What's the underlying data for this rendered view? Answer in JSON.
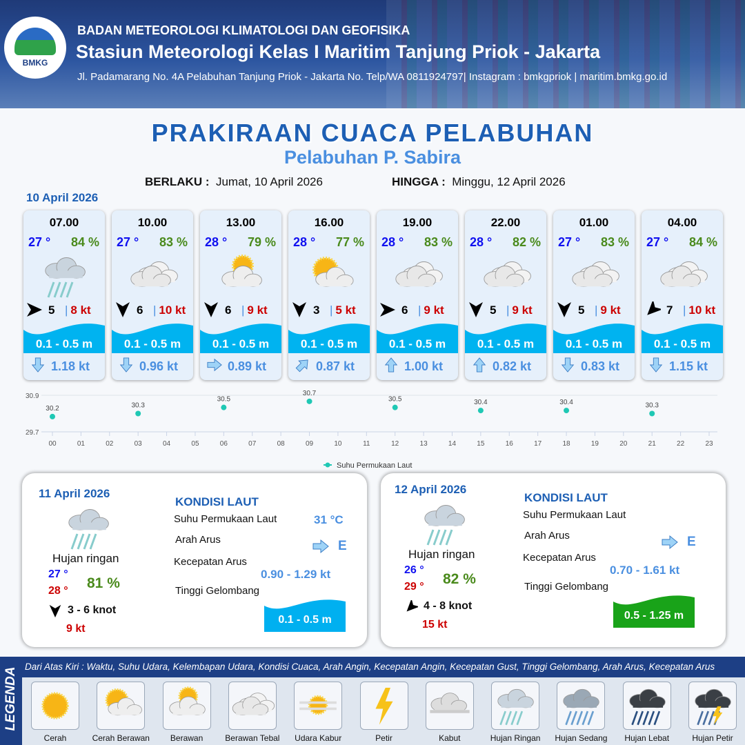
{
  "header": {
    "org": "BADAN METEOROLOGI KLIMATOLOGI DAN GEOFISIKA",
    "station": "Stasiun Meteorologi Kelas I Maritim Tanjung Priok - Jakarta",
    "address": "Jl. Padamarang No. 4A Pelabuhan Tanjung Priok - Jakarta No. Telp/WA 0811924797| Instagram : bmkgpriok | maritim.bmkg.go.id",
    "logo_text": "BMKG"
  },
  "title": "PRAKIRAAN CUACA PELABUHAN",
  "subtitle": "Pelabuhan P. Sabira",
  "validity": {
    "from_label": "BERLAKU :",
    "from": "Jumat, 10 April 2026",
    "to_label": "HINGGA :",
    "to": "Minggu, 12 April 2026"
  },
  "day1_date": "10 April 2026",
  "forecasts": [
    {
      "time": "07.00",
      "temp": "27 °",
      "hum": "84 %",
      "icon": "hujan-ringan",
      "wind_dir": 90,
      "wind": "5",
      "gust": "8 kt",
      "wave": "0.1 - 0.5 m",
      "cur_dir": 180,
      "cur": "1.18 kt"
    },
    {
      "time": "10.00",
      "temp": "27 °",
      "hum": "83 %",
      "icon": "berawan-tebal",
      "wind_dir": 180,
      "wind": "6",
      "gust": "10 kt",
      "wave": "0.1 - 0.5 m",
      "cur_dir": 180,
      "cur": "0.96 kt"
    },
    {
      "time": "13.00",
      "temp": "28 °",
      "hum": "79 %",
      "icon": "berawan",
      "wind_dir": 180,
      "wind": "6",
      "gust": "9 kt",
      "wave": "0.1 - 0.5 m",
      "cur_dir": 90,
      "cur": "0.89 kt"
    },
    {
      "time": "16.00",
      "temp": "28 °",
      "hum": "77 %",
      "icon": "cerah-berawan",
      "wind_dir": 180,
      "wind": "3",
      "gust": "5 kt",
      "wave": "0.1 - 0.5 m",
      "cur_dir": 45,
      "cur": "0.87 kt"
    },
    {
      "time": "19.00",
      "temp": "28 °",
      "hum": "83 %",
      "icon": "berawan-tebal",
      "wind_dir": 90,
      "wind": "6",
      "gust": "9 kt",
      "wave": "0.1 - 0.5 m",
      "cur_dir": 0,
      "cur": "1.00 kt"
    },
    {
      "time": "22.00",
      "temp": "28 °",
      "hum": "82 %",
      "icon": "berawan-tebal",
      "wind_dir": 180,
      "wind": "5",
      "gust": "9 kt",
      "wave": "0.1 - 0.5 m",
      "cur_dir": 0,
      "cur": "0.82 kt"
    },
    {
      "time": "01.00",
      "temp": "27 °",
      "hum": "83 %",
      "icon": "berawan-tebal",
      "wind_dir": 180,
      "wind": "5",
      "gust": "9 kt",
      "wave": "0.1 - 0.5 m",
      "cur_dir": 180,
      "cur": "0.83 kt"
    },
    {
      "time": "04.00",
      "temp": "27 °",
      "hum": "84 %",
      "icon": "berawan-tebal",
      "wind_dir": 225,
      "wind": "7",
      "gust": "10 kt",
      "wave": "0.1 - 0.5 m",
      "cur_dir": 180,
      "cur": "1.15 kt"
    }
  ],
  "chart_data": {
    "type": "scatter",
    "categories": [
      "00",
      "01",
      "02",
      "03",
      "04",
      "05",
      "06",
      "07",
      "08",
      "09",
      "10",
      "11",
      "12",
      "13",
      "14",
      "15",
      "16",
      "17",
      "18",
      "19",
      "20",
      "21",
      "22",
      "23"
    ],
    "series": [
      {
        "name": "Suhu Permukaan Laut",
        "x": [
          "00",
          "03",
          "06",
          "09",
          "12",
          "15",
          "18",
          "21"
        ],
        "values": [
          30.2,
          30.3,
          30.5,
          30.7,
          30.5,
          30.4,
          30.4,
          30.3
        ],
        "color": "#1fc8b4"
      }
    ],
    "yticks": [
      "30.9",
      "29.7"
    ],
    "ylim": [
      29.7,
      30.9
    ],
    "grid": true,
    "legend": "bottom"
  },
  "days": [
    {
      "date": "11 April 2026",
      "weather": "Hujan ringan",
      "tmin": "27 °",
      "tmax": "28 °",
      "hum": "81 %",
      "wind_dir": 180,
      "wind": "3  - 6 knot",
      "gust": "9 kt",
      "kondisi": "KONDISI LAUT",
      "sst_label": "Suhu Permukaan Laut",
      "sst": "31 °C",
      "arus_label": "Arah Arus",
      "arus": "E",
      "kec_label": "Kecepatan Arus",
      "kec": "0.90  - 1.29 kt",
      "gel_label": "Tinggi Gelombang",
      "gel": "0.1 - 0.5 m",
      "gel_color": "#00b0f0"
    },
    {
      "date": "12 April 2026",
      "weather": "Hujan ringan",
      "tmin": "26 °",
      "tmax": "29 °",
      "hum": "82 %",
      "wind_dir": 225,
      "wind": "4  - 8 knot",
      "gust": "15 kt",
      "kondisi": "KONDISI LAUT",
      "sst_label": "Suhu Permukaan Laut",
      "sst": "",
      "arus_label": "Arah Arus",
      "arus": "E",
      "kec_label": "Kecepatan Arus",
      "kec": "0.70  - 1.61 kt",
      "gel_label": "Tinggi Gelombang",
      "gel": "0.5 - 1.25 m",
      "gel_color": "#19a319"
    }
  ],
  "legend": {
    "title": "LEGENDA",
    "description": "Dari Atas Kiri : Waktu, Suhu Udara, Kelembapan Udara, Kondisi Cuaca, Arah Angin, Kecepatan Angin, Kecepatan Gust, Tinggi Gelombang, Arah Arus, Kecepatan Arus",
    "items": [
      {
        "label": "Cerah",
        "icon": "cerah"
      },
      {
        "label": "Cerah Berawan",
        "icon": "cerah-berawan"
      },
      {
        "label": "Berawan",
        "icon": "berawan"
      },
      {
        "label": "Berawan Tebal",
        "icon": "berawan-tebal"
      },
      {
        "label": "Udara Kabur",
        "icon": "udara-kabur"
      },
      {
        "label": "Petir",
        "icon": "petir"
      },
      {
        "label": "Kabut",
        "icon": "kabut"
      },
      {
        "label": "Hujan Ringan",
        "icon": "hujan-ringan"
      },
      {
        "label": "Hujan Sedang",
        "icon": "hujan-sedang"
      },
      {
        "label": "Hujan Lebat",
        "icon": "hujan-lebat"
      },
      {
        "label": "Hujan Petir",
        "icon": "hujan-petir"
      }
    ]
  }
}
